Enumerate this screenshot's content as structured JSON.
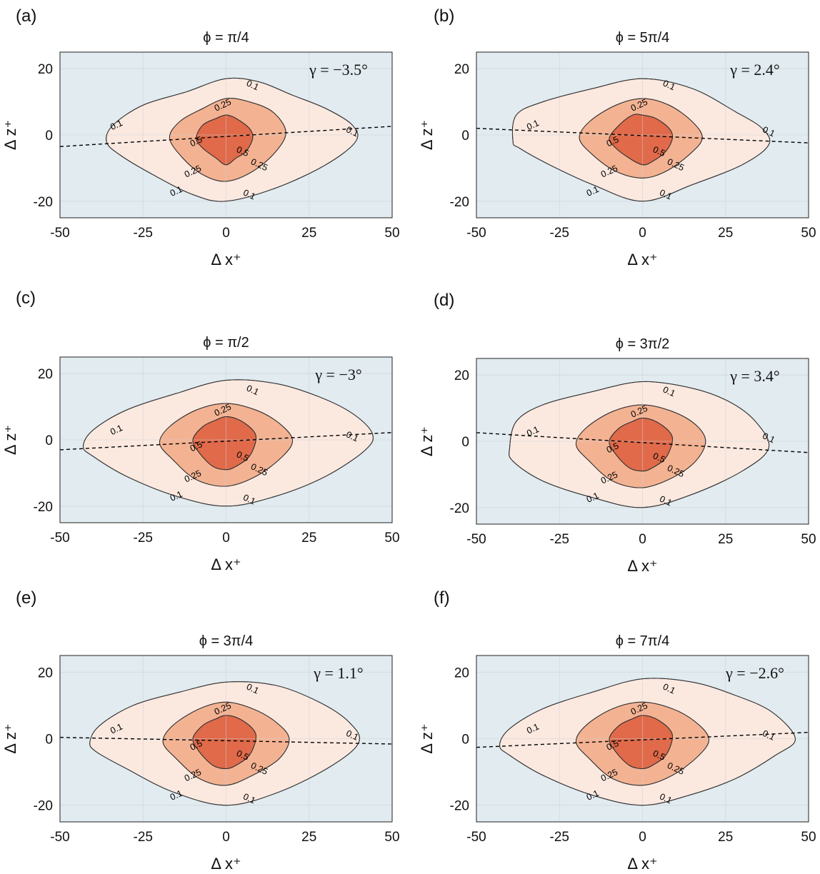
{
  "chart_data": [
    {
      "type": "contour",
      "panel": "(a)",
      "title": "ϕ = π/4",
      "xlabel": "Δ x⁺",
      "ylabel": "Δ z⁺",
      "xlim": [
        -50,
        50
      ],
      "ylim": [
        -25,
        25
      ],
      "xticks": [
        "-50",
        "-25",
        "0",
        "25",
        "50"
      ],
      "yticks": [
        "20",
        "0",
        "-20"
      ],
      "grid": true,
      "annotation": "γ = −3.5°",
      "contour_levels": [
        "0.1",
        "0.25",
        "0.5"
      ],
      "contours": {
        "0.1": [
          [
            -36,
            -2
          ],
          [
            -34,
            3
          ],
          [
            -25,
            9
          ],
          [
            -12,
            13
          ],
          [
            0,
            17
          ],
          [
            10,
            16
          ],
          [
            20,
            12
          ],
          [
            30,
            8
          ],
          [
            38,
            3
          ],
          [
            39,
            -2
          ],
          [
            30,
            -9
          ],
          [
            15,
            -16
          ],
          [
            0,
            -20
          ],
          [
            -10,
            -18
          ],
          [
            -22,
            -12
          ],
          [
            -32,
            -6
          ]
        ],
        "0.25": [
          [
            -17,
            -1
          ],
          [
            -14,
            4
          ],
          [
            -7,
            8
          ],
          [
            0,
            11
          ],
          [
            7,
            10
          ],
          [
            14,
            7
          ],
          [
            18,
            1
          ],
          [
            15,
            -5
          ],
          [
            8,
            -11
          ],
          [
            0,
            -14
          ],
          [
            -7,
            -12
          ],
          [
            -13,
            -7
          ]
        ],
        "0.5": [
          [
            -9,
            -1
          ],
          [
            -7,
            3
          ],
          [
            -3,
            5
          ],
          [
            0,
            6
          ],
          [
            3,
            5
          ],
          [
            7,
            2
          ],
          [
            8,
            -1
          ],
          [
            6,
            -5
          ],
          [
            3,
            -7
          ],
          [
            0,
            -9
          ],
          [
            -3,
            -7
          ],
          [
            -7,
            -4
          ]
        ]
      },
      "dashed_line": [
        [
          -50,
          -3.5
        ],
        [
          50,
          2.6
        ]
      ]
    },
    {
      "type": "contour",
      "panel": "(b)",
      "title": "ϕ = 5π/4",
      "xlabel": "Δ x⁺",
      "ylabel": "Δ z⁺",
      "xlim": [
        -50,
        50
      ],
      "ylim": [
        -25,
        25
      ],
      "xticks": [
        "-50",
        "-25",
        "0",
        "25",
        "50"
      ],
      "yticks": [
        "20",
        "0",
        "-20"
      ],
      "grid": true,
      "annotation": "γ = 2.4°",
      "contour_levels": [
        "0.1",
        "0.25",
        "0.5"
      ],
      "contours": {
        "0.1": [
          [
            -39,
            -2
          ],
          [
            -38,
            6
          ],
          [
            -30,
            10
          ],
          [
            -15,
            14
          ],
          [
            0,
            17
          ],
          [
            15,
            14
          ],
          [
            28,
            7
          ],
          [
            36,
            2
          ],
          [
            38,
            -3
          ],
          [
            30,
            -9
          ],
          [
            15,
            -15
          ],
          [
            0,
            -20
          ],
          [
            -15,
            -15
          ],
          [
            -28,
            -9
          ],
          [
            -37,
            -4
          ]
        ],
        "0.25": [
          [
            -19,
            -1
          ],
          [
            -16,
            4
          ],
          [
            -8,
            9
          ],
          [
            0,
            11
          ],
          [
            8,
            9
          ],
          [
            15,
            4
          ],
          [
            18,
            -1
          ],
          [
            14,
            -6
          ],
          [
            7,
            -11
          ],
          [
            0,
            -13
          ],
          [
            -8,
            -11
          ],
          [
            -15,
            -6
          ]
        ],
        "0.5": [
          [
            -10,
            -1
          ],
          [
            -7,
            3
          ],
          [
            -3,
            6
          ],
          [
            0,
            6
          ],
          [
            4,
            5
          ],
          [
            8,
            2
          ],
          [
            9,
            -1
          ],
          [
            7,
            -5
          ],
          [
            3,
            -8
          ],
          [
            0,
            -9
          ],
          [
            -4,
            -7
          ],
          [
            -8,
            -4
          ]
        ]
      },
      "dashed_line": [
        [
          -50,
          2
        ],
        [
          50,
          -2.4
        ]
      ]
    },
    {
      "type": "contour",
      "panel": "(c)",
      "title": "ϕ = π/2",
      "xlabel": "Δ x⁺",
      "ylabel": "Δ z⁺",
      "xlim": [
        -50,
        50
      ],
      "ylim": [
        -25,
        25
      ],
      "xticks": [
        "-50",
        "-25",
        "0",
        "25",
        "50"
      ],
      "yticks": [
        "20",
        "0",
        "-20"
      ],
      "grid": true,
      "annotation": "γ = −3°",
      "contour_levels": [
        "0.1",
        "0.25",
        "0.5"
      ],
      "contours": {
        "0.1": [
          [
            -43,
            -2
          ],
          [
            -40,
            3
          ],
          [
            -30,
            9
          ],
          [
            -15,
            14
          ],
          [
            0,
            18
          ],
          [
            15,
            17
          ],
          [
            28,
            13
          ],
          [
            38,
            8
          ],
          [
            44,
            2
          ],
          [
            42,
            -3
          ],
          [
            30,
            -11
          ],
          [
            15,
            -17
          ],
          [
            0,
            -20
          ],
          [
            -15,
            -17
          ],
          [
            -30,
            -11
          ],
          [
            -40,
            -5
          ]
        ],
        "0.25": [
          [
            -20,
            -1
          ],
          [
            -17,
            4
          ],
          [
            -9,
            9
          ],
          [
            0,
            11
          ],
          [
            9,
            9
          ],
          [
            16,
            5
          ],
          [
            20,
            0
          ],
          [
            17,
            -5
          ],
          [
            9,
            -11
          ],
          [
            0,
            -14
          ],
          [
            -9,
            -12
          ],
          [
            -16,
            -6
          ]
        ],
        "0.5": [
          [
            -10,
            0
          ],
          [
            -7,
            4
          ],
          [
            -3,
            6
          ],
          [
            0,
            7
          ],
          [
            4,
            6
          ],
          [
            8,
            3
          ],
          [
            9,
            0
          ],
          [
            7,
            -5
          ],
          [
            3,
            -8
          ],
          [
            0,
            -9
          ],
          [
            -4,
            -8
          ],
          [
            -8,
            -4
          ]
        ]
      },
      "dashed_line": [
        [
          -50,
          -3
        ],
        [
          50,
          2.2
        ]
      ]
    },
    {
      "type": "contour",
      "panel": "(d)",
      "title": "ϕ = 3π/2",
      "xlabel": "Δ x⁺",
      "ylabel": "Δ z⁺",
      "xlim": [
        -50,
        50
      ],
      "ylim": [
        -25,
        25
      ],
      "xticks": [
        "-50",
        "-25",
        "0",
        "25",
        "50"
      ],
      "yticks": [
        "20",
        "0",
        "-20"
      ],
      "grid": true,
      "annotation": "γ = 3.4°",
      "contour_levels": [
        "0.1",
        "0.25",
        "0.5"
      ],
      "contours": {
        "0.1": [
          [
            -40,
            -2
          ],
          [
            -38,
            6
          ],
          [
            -30,
            11
          ],
          [
            -15,
            15
          ],
          [
            0,
            18
          ],
          [
            15,
            16
          ],
          [
            26,
            12
          ],
          [
            34,
            6
          ],
          [
            38,
            -2
          ],
          [
            30,
            -9
          ],
          [
            15,
            -16
          ],
          [
            0,
            -20
          ],
          [
            -15,
            -17
          ],
          [
            -30,
            -12
          ],
          [
            -39,
            -6
          ]
        ],
        "0.25": [
          [
            -20,
            -1
          ],
          [
            -17,
            4
          ],
          [
            -9,
            9
          ],
          [
            0,
            11
          ],
          [
            9,
            9
          ],
          [
            16,
            5
          ],
          [
            19,
            0
          ],
          [
            16,
            -6
          ],
          [
            9,
            -11
          ],
          [
            0,
            -14
          ],
          [
            -9,
            -12
          ],
          [
            -16,
            -6
          ]
        ],
        "0.5": [
          [
            -10,
            0
          ],
          [
            -7,
            4
          ],
          [
            -3,
            6
          ],
          [
            0,
            7
          ],
          [
            4,
            6
          ],
          [
            8,
            3
          ],
          [
            9,
            0
          ],
          [
            7,
            -5
          ],
          [
            3,
            -8
          ],
          [
            0,
            -9
          ],
          [
            -4,
            -8
          ],
          [
            -8,
            -4
          ]
        ]
      },
      "dashed_line": [
        [
          -50,
          2.6
        ],
        [
          50,
          -3.4
        ]
      ]
    },
    {
      "type": "contour",
      "panel": "(e)",
      "title": "ϕ = 3π/4",
      "xlabel": "Δ x⁺",
      "ylabel": "Δ z⁺",
      "xlim": [
        -50,
        50
      ],
      "ylim": [
        -25,
        25
      ],
      "xticks": [
        "-50",
        "-25",
        "0",
        "25",
        "50"
      ],
      "yticks": [
        "20",
        "0",
        "-20"
      ],
      "grid": true,
      "annotation": "γ = 1.1°",
      "contour_levels": [
        "0.1",
        "0.25",
        "0.5"
      ],
      "contours": {
        "0.1": [
          [
            -41,
            -1
          ],
          [
            -38,
            4
          ],
          [
            -28,
            10
          ],
          [
            -14,
            14
          ],
          [
            0,
            17
          ],
          [
            15,
            16
          ],
          [
            28,
            11
          ],
          [
            37,
            5
          ],
          [
            40,
            -1
          ],
          [
            32,
            -8
          ],
          [
            16,
            -16
          ],
          [
            0,
            -20
          ],
          [
            -16,
            -16
          ],
          [
            -30,
            -9
          ],
          [
            -39,
            -4
          ]
        ],
        "0.25": [
          [
            -19,
            -1
          ],
          [
            -16,
            4
          ],
          [
            -8,
            9
          ],
          [
            0,
            11
          ],
          [
            8,
            9
          ],
          [
            15,
            5
          ],
          [
            19,
            0
          ],
          [
            16,
            -6
          ],
          [
            8,
            -11
          ],
          [
            0,
            -14
          ],
          [
            -8,
            -12
          ],
          [
            -15,
            -6
          ]
        ],
        "0.5": [
          [
            -10,
            0
          ],
          [
            -7,
            4
          ],
          [
            -3,
            6
          ],
          [
            0,
            7
          ],
          [
            4,
            6
          ],
          [
            8,
            3
          ],
          [
            9,
            0
          ],
          [
            7,
            -5
          ],
          [
            3,
            -8
          ],
          [
            0,
            -9
          ],
          [
            -4,
            -8
          ],
          [
            -8,
            -4
          ]
        ]
      },
      "dashed_line": [
        [
          -50,
          0.4
        ],
        [
          50,
          -1.6
        ]
      ]
    },
    {
      "type": "contour",
      "panel": "(f)",
      "title": "ϕ = 7π/4",
      "xlabel": "Δ x⁺",
      "ylabel": "Δ z⁺",
      "xlim": [
        -50,
        50
      ],
      "ylim": [
        -25,
        25
      ],
      "xticks": [
        "-50",
        "-25",
        "0",
        "25",
        "50"
      ],
      "yticks": [
        "20",
        "0",
        "-20"
      ],
      "grid": true,
      "annotation": "γ = −2.6°",
      "contour_levels": [
        "0.1",
        "0.25",
        "0.5"
      ],
      "contours": {
        "0.1": [
          [
            -43,
            -2
          ],
          [
            -40,
            3
          ],
          [
            -30,
            9
          ],
          [
            -15,
            14
          ],
          [
            0,
            18
          ],
          [
            15,
            17
          ],
          [
            28,
            13
          ],
          [
            39,
            8
          ],
          [
            46,
            0
          ],
          [
            40,
            -5
          ],
          [
            28,
            -12
          ],
          [
            14,
            -17
          ],
          [
            0,
            -20
          ],
          [
            -15,
            -17
          ],
          [
            -30,
            -11
          ],
          [
            -40,
            -5
          ]
        ],
        "0.25": [
          [
            -20,
            -1
          ],
          [
            -17,
            4
          ],
          [
            -9,
            9
          ],
          [
            0,
            11
          ],
          [
            9,
            9
          ],
          [
            16,
            5
          ],
          [
            20,
            0
          ],
          [
            17,
            -5
          ],
          [
            9,
            -11
          ],
          [
            0,
            -14
          ],
          [
            -9,
            -12
          ],
          [
            -16,
            -6
          ]
        ],
        "0.5": [
          [
            -10,
            0
          ],
          [
            -7,
            4
          ],
          [
            -3,
            6
          ],
          [
            0,
            7
          ],
          [
            4,
            6
          ],
          [
            8,
            3
          ],
          [
            9,
            0
          ],
          [
            7,
            -5
          ],
          [
            3,
            -8
          ],
          [
            0,
            -9
          ],
          [
            -4,
            -8
          ],
          [
            -8,
            -4
          ]
        ]
      },
      "dashed_line": [
        [
          -50,
          -2.6
        ],
        [
          50,
          1.9
        ]
      ]
    }
  ],
  "colors": {
    "background": "#e1ebf0",
    "level_0.1": "#fbe9e0",
    "level_0.25": "#f3b393",
    "level_0.5": "#e06a4a",
    "grid": "#c9cfd4",
    "contour_stroke": "#333333"
  }
}
